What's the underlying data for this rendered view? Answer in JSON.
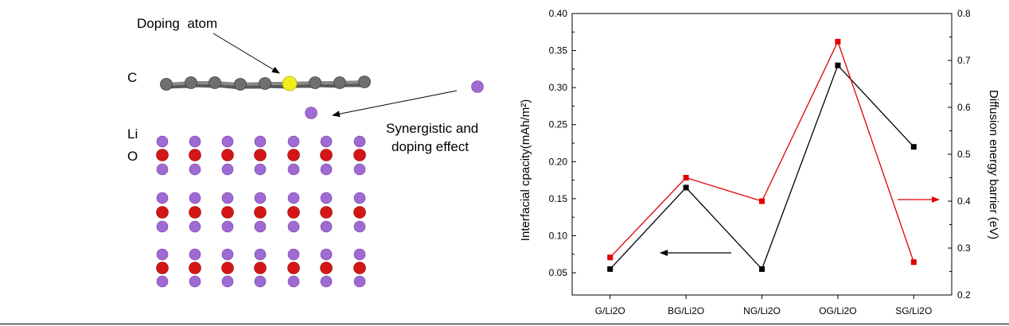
{
  "structure_panel": {
    "labels": {
      "carbon": "C",
      "lithium": "Li",
      "oxygen": "O",
      "doping_atom": "Doping  atom",
      "synergistic_line1": "Synergistic and",
      "synergistic_line2": "doping effect"
    },
    "colors": {
      "carbon_atom": "#6f6f6f",
      "dopant_atom": "#f2ee1c",
      "lithium_atom": "#a06ad4",
      "oxygen_atom": "#d51616"
    }
  },
  "chart_data": {
    "type": "line",
    "categories": [
      "G/Li2O",
      "BG/Li2O",
      "NG/Li2O",
      "OG/Li2O",
      "SG/Li2O"
    ],
    "series": [
      {
        "color": "#000000",
        "axis": "left",
        "values": [
          0.055,
          0.165,
          0.055,
          0.33,
          0.22
        ]
      },
      {
        "color": "#e00000",
        "axis": "right",
        "values": [
          0.28,
          0.45,
          0.4,
          0.74,
          0.27
        ]
      }
    ],
    "ylabel": "Interfacial cpacity(mAh/m²)",
    "ylabel_right": "Diffusion energy barrier (eV)",
    "ylim": [
      0.02,
      0.4
    ],
    "ylim_right": [
      0.2,
      0.8
    ],
    "yticks": [
      "0.05",
      "0.10",
      "0.15",
      "0.20",
      "0.25",
      "0.30",
      "0.35",
      "0.40"
    ],
    "yticks_right": [
      "0.2",
      "0.3",
      "0.4",
      "0.5",
      "0.6",
      "0.7",
      "0.8"
    ],
    "grid": false
  }
}
